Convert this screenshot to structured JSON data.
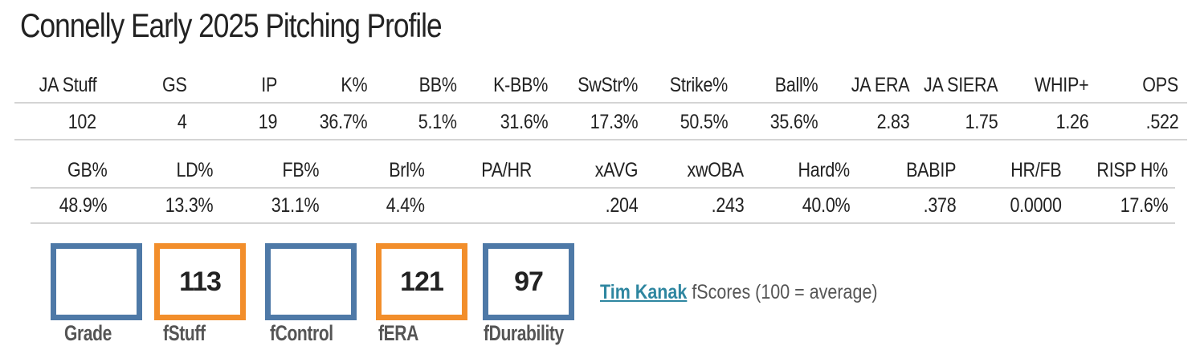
{
  "title": "Connelly Early 2025 Pitching Profile",
  "table1": {
    "headers": [
      "JA Stuff",
      "GS",
      "IP",
      "K%",
      "BB%",
      "K-BB%",
      "SwStr%",
      "Strike%",
      "Ball%",
      "JA ERA",
      "JA SIERA",
      "WHIP+",
      "OPS"
    ],
    "values": [
      "102",
      "4",
      "19",
      "36.7%",
      "5.1%",
      "31.6%",
      "17.3%",
      "50.5%",
      "35.6%",
      "2.83",
      "1.75",
      "1.26",
      ".522"
    ]
  },
  "table2": {
    "headers": [
      "GB%",
      "LD%",
      "FB%",
      "Brl%",
      "PA/HR",
      "xAVG",
      "xwOBA",
      "Hard%",
      "BABIP",
      "HR/FB",
      "RISP H%"
    ],
    "values": [
      "48.9%",
      "13.3%",
      "31.1%",
      "4.4%",
      "",
      ".204",
      ".243",
      "40.0%",
      ".378",
      "0.0000",
      "17.6%"
    ]
  },
  "fscores": [
    {
      "label": "Grade",
      "value": "",
      "color": "#4e79a7"
    },
    {
      "label": "fStuff",
      "value": "113",
      "color": "#f28e2b"
    },
    {
      "label": "fControl",
      "value": "",
      "color": "#4e79a7"
    },
    {
      "label": "fERA",
      "value": "121",
      "color": "#f28e2b"
    },
    {
      "label": "fDurability",
      "value": "97",
      "color": "#4e79a7"
    }
  ],
  "credit": {
    "link": "Tim Kanak",
    "text": " fScores (100 = average)"
  },
  "colors": {
    "blue": "#4e79a7",
    "orange": "#f28e2b",
    "link": "#2e86a0"
  }
}
